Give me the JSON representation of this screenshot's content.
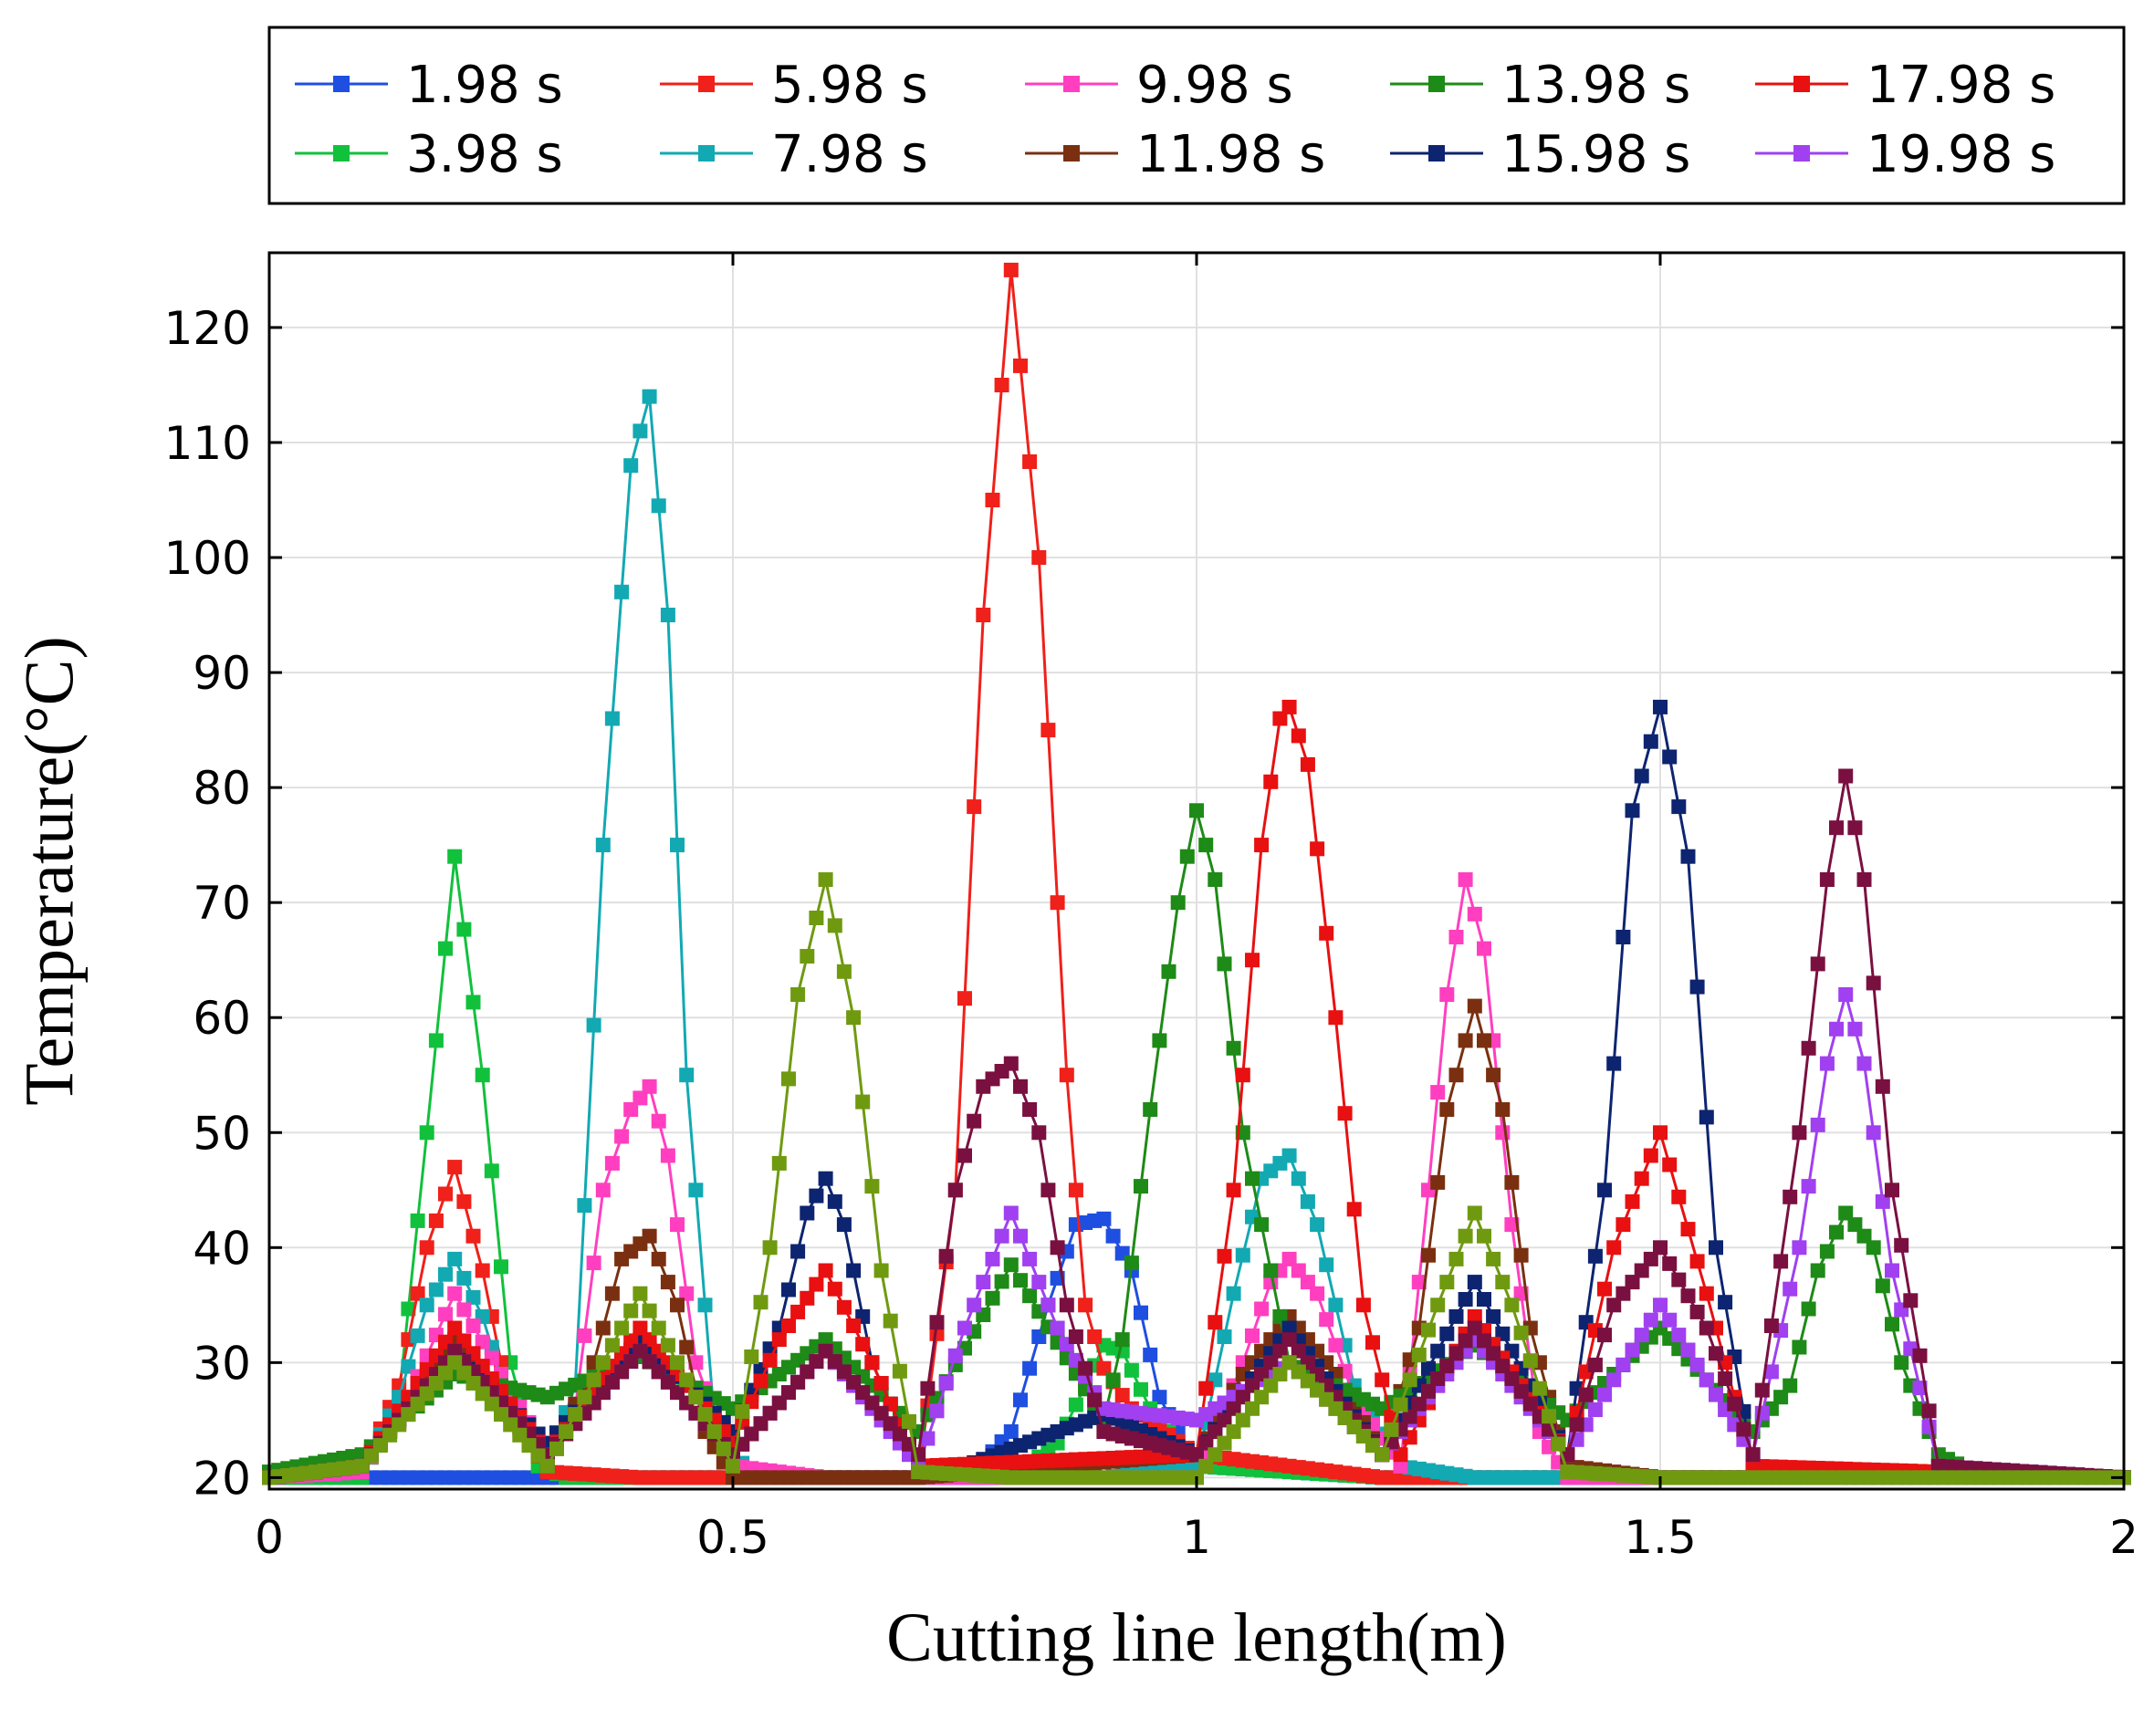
{
  "chart_data": {
    "type": "line",
    "xlabel": "Cutting line length(m)",
    "ylabel": "Temperature(°C)",
    "xlim": [
      0,
      2
    ],
    "ylim": [
      19,
      126.5
    ],
    "xticks": [
      0,
      0.5,
      1,
      1.5,
      2
    ],
    "xtick_labels": [
      "0",
      "0.5",
      "1",
      "1.5",
      "2"
    ],
    "yticks": [
      20,
      30,
      40,
      50,
      60,
      70,
      80,
      90,
      100,
      110,
      120
    ],
    "ytick_labels": [
      "20",
      "30",
      "40",
      "50",
      "60",
      "70",
      "80",
      "90",
      "100",
      "110",
      "120"
    ],
    "grid": true,
    "legend_position": "top",
    "series": [
      {
        "name": "1.98 s",
        "color": "#1f4fe0",
        "x": [
          0,
          0.1,
          0.15,
          0.2,
          0.25,
          0.3,
          0.35,
          0.4,
          0.5,
          0.6,
          0.7,
          0.76,
          0.8,
          0.84,
          0.87,
          0.9,
          0.93,
          0.96,
          1.0,
          1.2,
          1.5,
          1.8,
          2.0
        ],
        "y": [
          20,
          20,
          20,
          20,
          20,
          20,
          20,
          20,
          20,
          20,
          20,
          20.5,
          24,
          35,
          42,
          42.5,
          38,
          27,
          21,
          20,
          20,
          20,
          20
        ]
      },
      {
        "name": "3.98 s",
        "color": "#11c13c",
        "x": [
          0,
          0.05,
          0.1,
          0.14,
          0.17,
          0.2,
          0.23,
          0.26,
          0.29,
          0.32,
          0.35,
          0.4,
          0.5,
          0.7,
          0.8,
          0.85,
          0.88,
          0.9,
          0.92,
          0.95,
          1.0,
          1.2,
          1.5,
          1.8,
          2.0
        ],
        "y": [
          20,
          20,
          20,
          27,
          50,
          74,
          55,
          30,
          21,
          20,
          20,
          20,
          20,
          20,
          20,
          23,
          28,
          31.5,
          31,
          26,
          21,
          20,
          20,
          20,
          20
        ]
      },
      {
        "name": "5.98 s",
        "color": "#f0201a",
        "x": [
          0,
          0.1,
          0.14,
          0.17,
          0.2,
          0.23,
          0.26,
          0.3,
          0.4,
          0.6,
          0.7,
          0.74,
          0.77,
          0.8,
          0.83,
          0.86,
          0.88,
          0.9,
          0.93,
          1.0,
          1.2,
          1.5,
          1.8,
          2.0
        ],
        "y": [
          20,
          20.5,
          28,
          40,
          47,
          38,
          26,
          20.5,
          20,
          20,
          20,
          45,
          95,
          125,
          100,
          55,
          35,
          29.5,
          26,
          22,
          20,
          20,
          20,
          20
        ]
      },
      {
        "name": "7.98 s",
        "color": "#12a9b3",
        "x": [
          0,
          0.1,
          0.14,
          0.17,
          0.2,
          0.23,
          0.26,
          0.3,
          0.33,
          0.36,
          0.39,
          0.41,
          0.43,
          0.45,
          0.48,
          0.52,
          0.6,
          0.9,
          1.0,
          1.04,
          1.07,
          1.1,
          1.13,
          1.17,
          1.22,
          1.3,
          1.5,
          1.8,
          2.0
        ],
        "y": [
          20,
          20.5,
          27,
          35,
          39,
          34,
          26,
          21,
          28,
          75,
          108,
          114,
          95,
          55,
          25,
          20,
          20,
          20,
          21,
          36,
          46,
          48,
          42,
          28,
          21,
          20,
          20,
          20,
          20
        ]
      },
      {
        "name": "9.98 s",
        "color": "#ff3fbf",
        "x": [
          0,
          0.1,
          0.15,
          0.2,
          0.25,
          0.3,
          0.33,
          0.36,
          0.39,
          0.41,
          0.43,
          0.46,
          0.5,
          0.6,
          1.0,
          1.05,
          1.08,
          1.1,
          1.13,
          1.17,
          1.22,
          1.25,
          1.27,
          1.29,
          1.31,
          1.34,
          1.37,
          1.4,
          1.5,
          2.0
        ],
        "y": [
          20,
          20.5,
          27,
          36,
          29,
          22,
          26,
          45,
          52,
          54,
          48,
          30,
          21,
          20,
          20,
          30,
          37,
          39,
          36,
          27,
          21,
          45,
          62,
          72,
          66,
          42,
          24,
          20,
          20,
          20
        ]
      },
      {
        "name": "11.98 s",
        "color": "#7a3010",
        "x": [
          0,
          0.1,
          0.2,
          0.3,
          0.35,
          0.38,
          0.41,
          0.44,
          0.47,
          0.5,
          0.53,
          0.6,
          0.7,
          1.0,
          1.05,
          1.1,
          1.15,
          1.2,
          1.24,
          1.27,
          1.3,
          1.33,
          1.36,
          1.4,
          1.5,
          2.0
        ],
        "y": [
          20,
          21,
          32,
          21,
          30,
          39,
          41,
          35,
          24,
          20,
          20,
          20,
          20,
          22,
          29,
          34,
          29,
          22,
          33,
          52,
          61,
          52,
          33,
          21,
          20,
          20
        ]
      },
      {
        "name": "13.98 s",
        "color": "#1e8a17",
        "x": [
          0,
          0.1,
          0.2,
          0.3,
          0.4,
          0.5,
          0.6,
          0.7,
          0.8,
          0.9,
          0.92,
          0.95,
          0.98,
          1.0,
          1.02,
          1.05,
          1.1,
          1.2,
          1.3,
          1.4,
          1.5,
          1.6,
          1.64,
          1.67,
          1.7,
          1.73,
          1.76,
          1.8,
          1.85,
          2.0
        ],
        "y": [
          20.5,
          22,
          29,
          27,
          30.5,
          26,
          32,
          24,
          38.5,
          25,
          32,
          52,
          70,
          78,
          72,
          50,
          30,
          26,
          31.5,
          25,
          33,
          24,
          28,
          38,
          43,
          40,
          30,
          22,
          20,
          20
        ]
      },
      {
        "name": "15.98 s",
        "color": "#0d2470",
        "x": [
          0,
          0.1,
          0.2,
          0.3,
          0.4,
          0.5,
          0.55,
          0.58,
          0.6,
          0.62,
          0.65,
          0.7,
          0.75,
          0.8,
          0.85,
          0.9,
          1.0,
          1.1,
          1.2,
          1.3,
          1.4,
          1.44,
          1.47,
          1.5,
          1.53,
          1.56,
          1.6,
          1.7,
          2.0
        ],
        "y": [
          20,
          21,
          31,
          23,
          32,
          24,
          33,
          43,
          46,
          42,
          30,
          21,
          21,
          22.5,
          24,
          25.5,
          22,
          33,
          22,
          37,
          22,
          45,
          78,
          87,
          74,
          40,
          21,
          20,
          20
        ]
      },
      {
        "name": "17.98 s",
        "color": "#e81010",
        "x": [
          0,
          0.1,
          0.2,
          0.3,
          0.4,
          0.5,
          0.55,
          0.6,
          0.65,
          0.7,
          1.0,
          1.04,
          1.07,
          1.09,
          1.1,
          1.12,
          1.15,
          1.18,
          1.22,
          1.3,
          1.4,
          1.45,
          1.5,
          1.55,
          1.6,
          2.0
        ],
        "y": [
          20,
          21,
          33,
          22,
          33,
          23,
          32,
          38,
          30,
          21,
          22,
          45,
          75,
          86,
          87,
          82,
          60,
          35,
          22,
          34,
          22,
          40,
          50,
          36,
          21,
          20
        ]
      },
      {
        "name": "19.98 s",
        "color": "#a040f0",
        "x": [
          0,
          0.1,
          0.2,
          0.3,
          0.4,
          0.5,
          0.6,
          0.7,
          0.75,
          0.8,
          0.85,
          0.9,
          1.0,
          1.1,
          1.2,
          1.3,
          1.4,
          1.5,
          1.6,
          1.65,
          1.68,
          1.7,
          1.72,
          1.75,
          1.8,
          2.0
        ],
        "y": [
          20,
          21,
          31,
          22,
          31,
          22,
          31,
          21,
          33,
          43,
          33,
          26,
          25,
          30,
          22,
          32,
          22,
          35,
          22,
          40,
          56,
          62,
          56,
          38,
          21,
          20
        ]
      },
      {
        "color": "#7a1040",
        "x": [
          0,
          0.1,
          0.2,
          0.3,
          0.4,
          0.5,
          0.6,
          0.7,
          0.74,
          0.77,
          0.8,
          0.83,
          0.86,
          0.9,
          1.0,
          1.1,
          1.2,
          1.3,
          1.4,
          1.45,
          1.5,
          1.55,
          1.6,
          1.65,
          1.68,
          1.7,
          1.72,
          1.75,
          1.8,
          2.0
        ],
        "y": [
          20,
          21,
          31,
          22,
          31,
          22,
          31,
          22,
          45,
          54,
          56,
          50,
          35,
          24,
          22,
          32,
          22,
          33,
          22,
          35,
          40,
          33,
          22,
          50,
          72,
          81,
          72,
          45,
          21,
          20
        ]
      },
      {
        "color": "#6f9a10",
        "x": [
          0,
          0.1,
          0.2,
          0.3,
          0.4,
          0.5,
          0.54,
          0.57,
          0.6,
          0.63,
          0.66,
          0.7,
          0.8,
          1.0,
          1.1,
          1.2,
          1.26,
          1.3,
          1.34,
          1.4,
          1.5,
          1.6,
          2.0
        ],
        "y": [
          20,
          21,
          30,
          21,
          36,
          21,
          40,
          62,
          72,
          60,
          38,
          20.5,
          20,
          20,
          30,
          22,
          35,
          43,
          35,
          20.5,
          20,
          20,
          20
        ]
      }
    ]
  }
}
